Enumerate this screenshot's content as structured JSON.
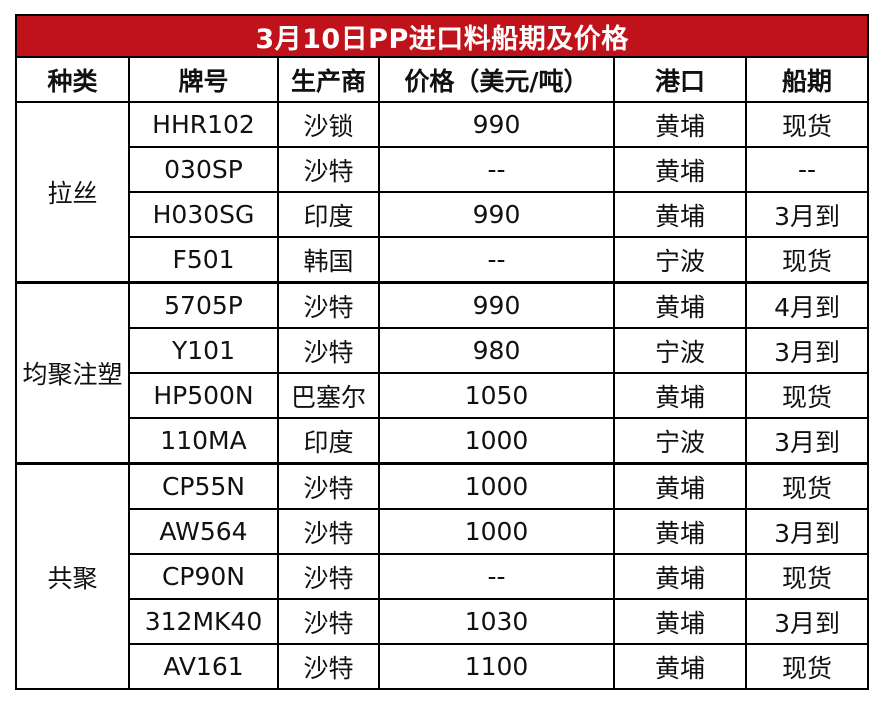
{
  "title": "3月10日PP进口料船期及价格",
  "headers": [
    "种类",
    "牌号",
    "生产商",
    "价格（美元/吨）",
    "港口",
    "船期"
  ],
  "groups": [
    {
      "category": "拉丝",
      "rows": [
        {
          "grade": "HHR102",
          "producer": "沙锁",
          "price": "990",
          "port": "黄埔",
          "shipping": "现货"
        },
        {
          "grade": "030SP",
          "producer": "沙特",
          "price": "--",
          "port": "黄埔",
          "shipping": "--"
        },
        {
          "grade": "H030SG",
          "producer": "印度",
          "price": "990",
          "port": "黄埔",
          "shipping": "3月到"
        },
        {
          "grade": "F501",
          "producer": "韩国",
          "price": "--",
          "port": "宁波",
          "shipping": "现货"
        }
      ]
    },
    {
      "category": "均聚注塑",
      "rows": [
        {
          "grade": "5705P",
          "producer": "沙特",
          "price": "990",
          "port": "黄埔",
          "shipping": "4月到"
        },
        {
          "grade": "Y101",
          "producer": "沙特",
          "price": "980",
          "port": "宁波",
          "shipping": "3月到"
        },
        {
          "grade": "HP500N",
          "producer": "巴塞尔",
          "price": "1050",
          "port": "黄埔",
          "shipping": "现货"
        },
        {
          "grade": "110MA",
          "producer": "印度",
          "price": "1000",
          "port": "宁波",
          "shipping": "3月到"
        }
      ]
    },
    {
      "category": "共聚",
      "rows": [
        {
          "grade": "CP55N",
          "producer": "沙特",
          "price": "1000",
          "port": "黄埔",
          "shipping": "现货"
        },
        {
          "grade": "AW564",
          "producer": "沙特",
          "price": "1000",
          "port": "黄埔",
          "shipping": "3月到"
        },
        {
          "grade": "CP90N",
          "producer": "沙特",
          "price": "--",
          "port": "黄埔",
          "shipping": "现货"
        },
        {
          "grade": "312MK40",
          "producer": "沙特",
          "price": "1030",
          "port": "黄埔",
          "shipping": "3月到"
        },
        {
          "grade": "AV161",
          "producer": "沙特",
          "price": "1100",
          "port": "黄埔",
          "shipping": "现货"
        }
      ]
    }
  ],
  "colors": {
    "title_bg": "#c0121a",
    "title_text": "#ffffff",
    "border": "#000000"
  }
}
